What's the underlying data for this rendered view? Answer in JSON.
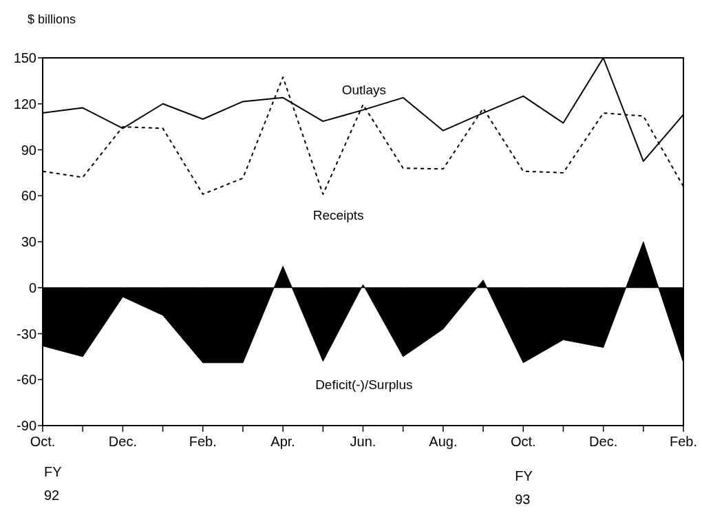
{
  "chart_data": {
    "type": "line",
    "ylabel": "$ billions",
    "categories": [
      "Oct.",
      null,
      "Dec.",
      null,
      "Feb.",
      null,
      "Apr.",
      null,
      "Jun.",
      null,
      "Aug.",
      null,
      "Oct.",
      null,
      "Dec.",
      null,
      "Feb."
    ],
    "series": [
      {
        "name": "Outlays",
        "color": "#000000",
        "line_style": "solid",
        "values": [
          114,
          117.4,
          104,
          120,
          110,
          121.5,
          124,
          108.6,
          116,
          124,
          102.5,
          114,
          125,
          107.5,
          150,
          82.5,
          113
        ]
      },
      {
        "name": "Receipts",
        "color": "#000000",
        "line_style": "dashed",
        "values": [
          76,
          72,
          105,
          104,
          61,
          71.5,
          137.4,
          61,
          119.5,
          78,
          77.5,
          117,
          76,
          75,
          114,
          112,
          66
        ]
      },
      {
        "name": "Deficit(-)/Surplus",
        "type": "area",
        "color": "#000000",
        "values": [
          -38,
          -45,
          -6,
          -18,
          -49,
          -49,
          14,
          -48,
          2,
          -45,
          -27,
          5,
          -49,
          -34,
          -39,
          30,
          -49
        ]
      }
    ],
    "ylim": [
      -90,
      150
    ],
    "yticks": [
      -90,
      -60,
      -30,
      0,
      30,
      60,
      90,
      120,
      150
    ],
    "grid": false,
    "marker": "none",
    "annotations": [
      "FY\n92",
      "FY\n93"
    ]
  }
}
